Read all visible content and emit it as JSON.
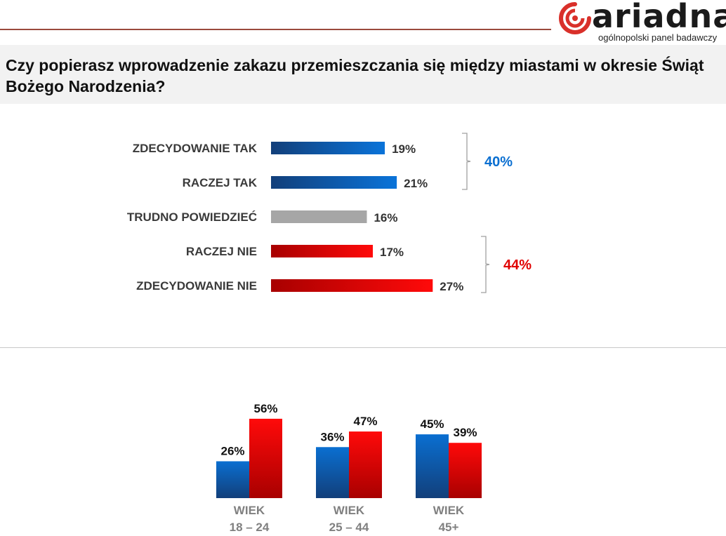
{
  "header": {
    "logo_word": "ariadna",
    "logo_tagline": "ogólnopolski panel badawczy",
    "title": "Czy popierasz wprowadzenie zakazu przemieszczania się między miastami w okresie Świąt Bożego Narodzenia?"
  },
  "colors": {
    "blue": "#0a6fd1",
    "blue_dark": "#123f7a",
    "red": "#ff0a0a",
    "red_dark": "#a80000",
    "gray": "#a6a6a6",
    "brace": "#a0a0a0"
  },
  "chart_data": [
    {
      "type": "bar",
      "orientation": "horizontal",
      "categories": [
        "ZDECYDOWANIE TAK",
        "RACZEJ TAK",
        "TRUDNO POWIEDZIEĆ",
        "RACZEJ NIE",
        "ZDECYDOWANIE NIE"
      ],
      "values": [
        19,
        21,
        16,
        17,
        27
      ],
      "value_labels": [
        "19%",
        "21%",
        "16%",
        "17%",
        "27%"
      ],
      "bar_colors": [
        "blue",
        "blue",
        "gray",
        "red",
        "red"
      ],
      "groups": [
        {
          "members": [
            0,
            1
          ],
          "total_label": "40%",
          "color": "#0a6fd1"
        },
        {
          "members": [
            3,
            4
          ],
          "total_label": "44%",
          "color": "#e00000"
        }
      ]
    },
    {
      "type": "bar",
      "orientation": "vertical",
      "categories": [
        [
          "WIEK",
          "18 – 24"
        ],
        [
          "WIEK",
          "25 – 44"
        ],
        [
          "WIEK",
          "45+"
        ]
      ],
      "series": [
        {
          "color": "blue",
          "values": [
            26,
            36,
            45
          ],
          "value_labels": [
            "26%",
            "36%",
            "45%"
          ]
        },
        {
          "color": "red",
          "values": [
            56,
            47,
            39
          ],
          "value_labels": [
            "56%",
            "47%",
            "39%"
          ]
        }
      ]
    }
  ]
}
